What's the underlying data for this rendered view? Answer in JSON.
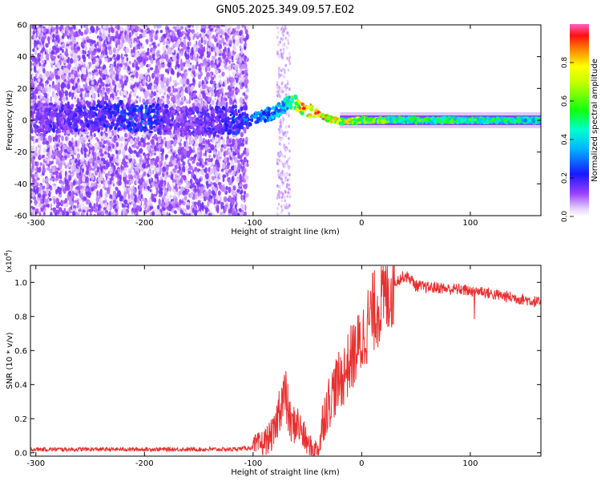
{
  "chart_data": [
    {
      "type": "heatmap",
      "title": "GN05.2025.349.09.57.E02",
      "xlabel": "Height of straight line (km)",
      "ylabel": "Frequency (Hz)",
      "xlim": [
        -305,
        165
      ],
      "ylim": [
        -60,
        60
      ],
      "x_ticks": [
        -300,
        -200,
        -100,
        0,
        100
      ],
      "x_tick_labels": [
        "-300",
        "-200",
        "-100",
        "0",
        "100"
      ],
      "y_ticks": [
        -60,
        -40,
        -20,
        0,
        20,
        40,
        60
      ],
      "y_tick_labels": [
        "-60",
        "-40",
        "-20",
        "0",
        "20",
        "40",
        "60"
      ],
      "colorbar": {
        "label": "Normalized spectral amplitude",
        "range": [
          0,
          1
        ],
        "ticks": [
          0.0,
          0.2,
          0.4,
          0.6,
          0.8
        ],
        "tick_labels": [
          "0.0",
          "0.2",
          "0.4",
          "0.6",
          "0.8"
        ]
      },
      "ridge": {
        "description_x": [
          -300,
          -230,
          -200,
          -170,
          -130,
          -110,
          -95,
          -80,
          -70,
          -62,
          -55,
          -45,
          -35,
          -25,
          -15,
          0,
          50,
          100,
          165
        ],
        "frequency": [
          1,
          3,
          2,
          -1,
          0,
          0,
          2,
          5,
          10,
          12,
          8,
          5,
          2,
          0,
          -1,
          0,
          0,
          0,
          0
        ],
        "amplitude": [
          0.15,
          0.25,
          0.3,
          0.15,
          0.2,
          0.3,
          0.35,
          0.4,
          0.45,
          0.7,
          0.9,
          0.95,
          0.9,
          0.9,
          0.85,
          0.7,
          0.6,
          0.6,
          0.5
        ]
      }
    },
    {
      "type": "line",
      "xlabel": "Height of straight line (km)",
      "ylabel": "SNR (10 * v/v)",
      "y_scale_label": "(x10",
      "y_scale_exp": "4",
      "y_scale_close": ")",
      "xlim": [
        -305,
        165
      ],
      "ylim": [
        -0.02,
        1.1
      ],
      "x_ticks": [
        -300,
        -200,
        -100,
        0,
        100
      ],
      "x_tick_labels": [
        "-300",
        "-200",
        "-100",
        "0",
        "100"
      ],
      "y_ticks": [
        0.0,
        0.2,
        0.4,
        0.6,
        0.8,
        1.0
      ],
      "y_tick_labels": [
        "0.0",
        "0.2",
        "0.4",
        "0.6",
        "0.8",
        "1.0"
      ],
      "series": [
        {
          "name": "SNR",
          "color": "#e83030",
          "x": [
            -305,
            -250,
            -200,
            -150,
            -120,
            -100,
            -90,
            -80,
            -75,
            -70,
            -65,
            -60,
            -55,
            -50,
            -45,
            -40,
            -38,
            -35,
            -30,
            -25,
            -20,
            -15,
            -10,
            -5,
            0,
            5,
            10,
            20,
            30,
            40,
            45,
            50,
            60,
            70,
            80,
            90,
            100,
            110,
            120,
            130,
            140,
            150,
            165
          ],
          "y": [
            0.02,
            0.02,
            0.02,
            0.02,
            0.02,
            0.03,
            0.06,
            0.12,
            0.3,
            0.33,
            0.15,
            0.18,
            0.12,
            0.05,
            0.02,
            0.02,
            0.08,
            0.22,
            0.3,
            0.38,
            0.42,
            0.48,
            0.55,
            0.6,
            0.65,
            0.75,
            0.82,
            0.9,
            1.0,
            1.04,
            1.02,
            0.98,
            0.97,
            0.97,
            0.96,
            0.96,
            0.95,
            0.95,
            0.93,
            0.92,
            0.91,
            0.9,
            0.88
          ]
        }
      ]
    }
  ]
}
